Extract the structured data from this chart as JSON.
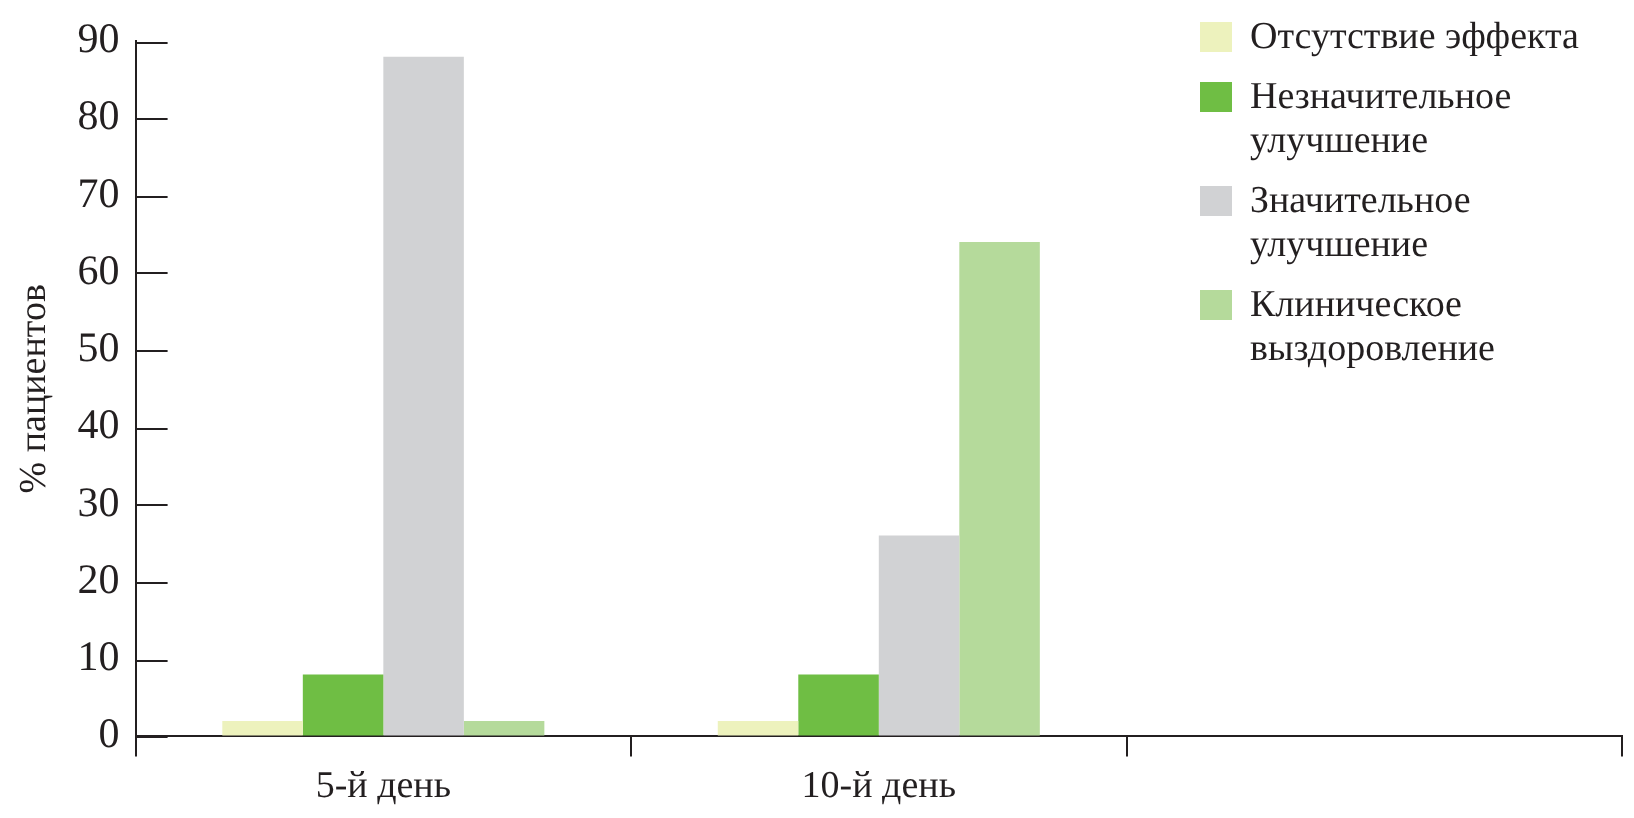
{
  "chart_data": {
    "type": "bar",
    "ylabel": "% пациентов",
    "categories": [
      "5-й день",
      "10-й день",
      null
    ],
    "series": [
      {
        "name": "Отсутствие эффекта",
        "color": "#edf2bd",
        "values": [
          2,
          2,
          null
        ]
      },
      {
        "name": "Незначительное улучшение",
        "color": "#6fbe44",
        "values": [
          8,
          8,
          null
        ]
      },
      {
        "name": "Значительное улучшение",
        "color": "#d1d2d4",
        "values": [
          88,
          26,
          null
        ]
      },
      {
        "name": "Клиническое выздоровление",
        "color": "#b5da9b",
        "values": [
          2,
          64,
          null
        ]
      }
    ],
    "ylim": [
      0,
      90
    ],
    "yticks": [
      0,
      10,
      20,
      30,
      40,
      50,
      60,
      70,
      80,
      90
    ],
    "grid": false,
    "legend": "top right"
  }
}
